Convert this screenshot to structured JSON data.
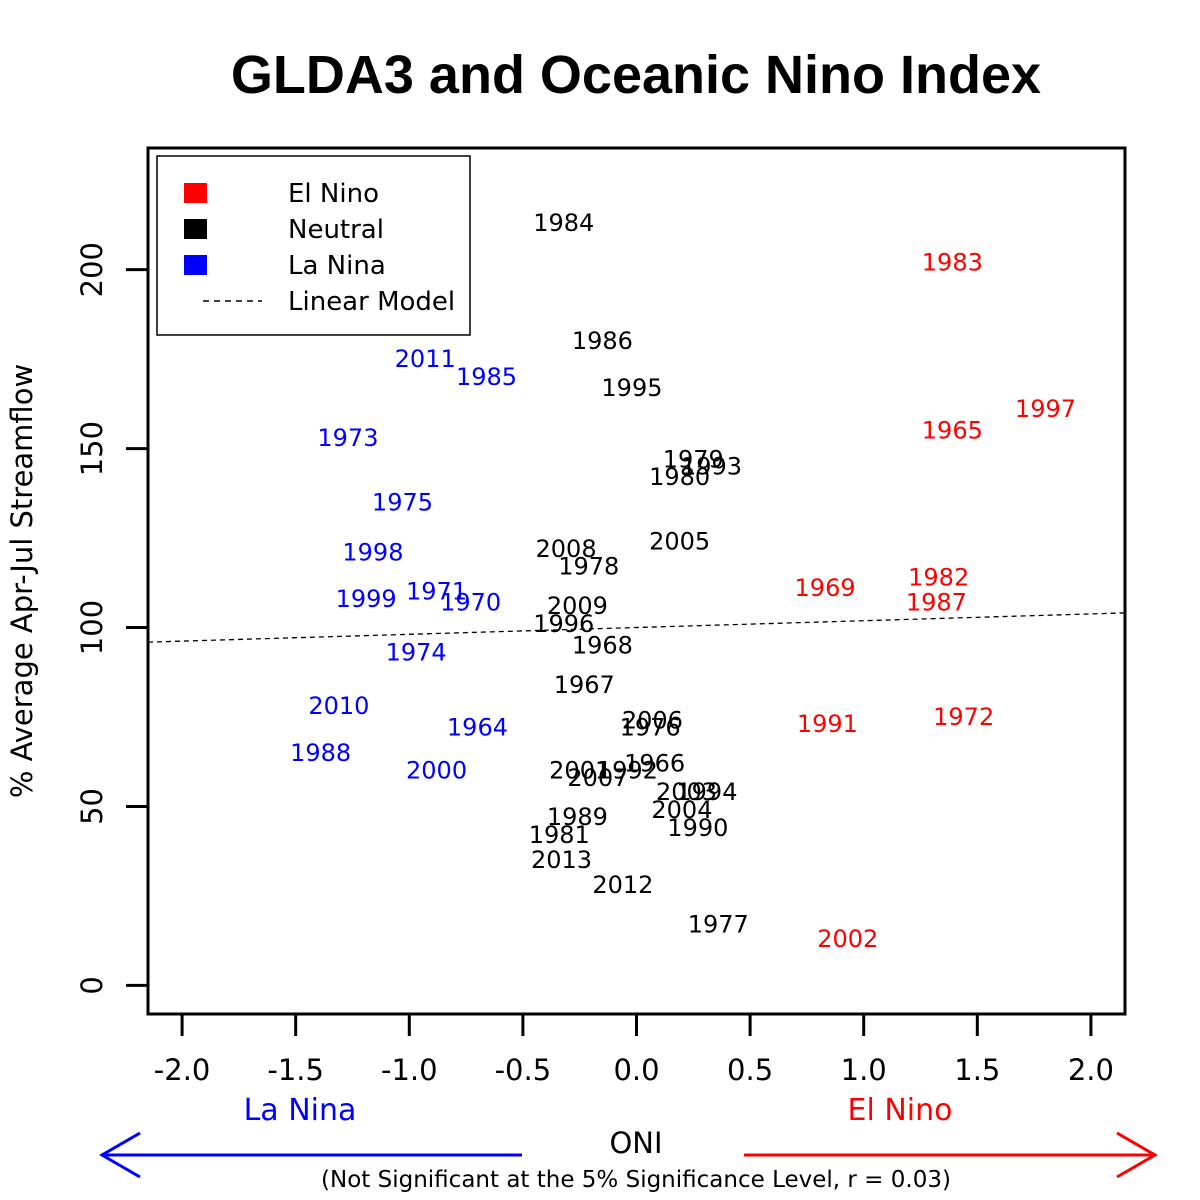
{
  "chart_data": {
    "type": "scatter",
    "title": "GLDA3 and Oceanic Nino Index",
    "xlabel": "ONI",
    "ylabel": "% Average Apr-Jul Streamflow",
    "note": "(Not Significant at the 5% Significance Level, r = 0.03)",
    "left_label": "La Nina",
    "right_label": "El Nino",
    "xlim": [
      -2.15,
      2.15
    ],
    "ylim": [
      -8,
      234
    ],
    "xticks": [
      -2.0,
      -1.5,
      -1.0,
      -0.5,
      0.0,
      0.5,
      1.0,
      1.5,
      2.0
    ],
    "xtick_labels": [
      "-2.0",
      "-1.5",
      "-1.0",
      "-0.5",
      "0.0",
      "0.5",
      "1.0",
      "1.5",
      "2.0"
    ],
    "yticks": [
      0,
      50,
      100,
      150,
      200
    ],
    "ytick_labels": [
      "0",
      "50",
      "100",
      "150",
      "200"
    ],
    "grid": false,
    "legend_position": "top-left",
    "legend": [
      {
        "label": "El Nino",
        "kind": "swatch",
        "color": "#ff0000"
      },
      {
        "label": "Neutral",
        "kind": "swatch",
        "color": "#000000"
      },
      {
        "label": "La Nina",
        "kind": "swatch",
        "color": "#0000ff"
      },
      {
        "label": "Linear Model",
        "kind": "dashed",
        "color": "#000000"
      }
    ],
    "colors": {
      "El Nino": "#ff0000",
      "Neutral": "#000000",
      "La Nina": "#0000ff"
    },
    "linear_model": {
      "intercept": 100.0,
      "slope": 1.9
    },
    "series": [
      {
        "name": "El Nino",
        "color": "#ff0000",
        "points": [
          {
            "label": "1983",
            "x": 1.39,
            "y": 202
          },
          {
            "label": "1997",
            "x": 1.8,
            "y": 161
          },
          {
            "label": "1965",
            "x": 1.39,
            "y": 155
          },
          {
            "label": "1969",
            "x": 0.83,
            "y": 111
          },
          {
            "label": "1982",
            "x": 1.33,
            "y": 114
          },
          {
            "label": "1987",
            "x": 1.32,
            "y": 107
          },
          {
            "label": "1991",
            "x": 0.84,
            "y": 73
          },
          {
            "label": "1972",
            "x": 1.44,
            "y": 75
          },
          {
            "label": "2002",
            "x": 0.93,
            "y": 13
          }
        ]
      },
      {
        "name": "Neutral",
        "color": "#000000",
        "points": [
          {
            "label": "1984",
            "x": -0.32,
            "y": 213
          },
          {
            "label": "1986",
            "x": -0.15,
            "y": 180
          },
          {
            "label": "1995",
            "x": -0.02,
            "y": 167
          },
          {
            "label": "1979",
            "x": 0.25,
            "y": 147
          },
          {
            "label": "1993",
            "x": 0.33,
            "y": 145
          },
          {
            "label": "1980",
            "x": 0.19,
            "y": 142
          },
          {
            "label": "2005",
            "x": 0.19,
            "y": 124
          },
          {
            "label": "2008",
            "x": -0.31,
            "y": 122
          },
          {
            "label": "1978",
            "x": -0.21,
            "y": 117
          },
          {
            "label": "2009",
            "x": -0.26,
            "y": 106
          },
          {
            "label": "1996",
            "x": -0.32,
            "y": 101
          },
          {
            "label": "1968",
            "x": -0.15,
            "y": 95
          },
          {
            "label": "1967",
            "x": -0.23,
            "y": 84
          },
          {
            "label": "2006",
            "x": 0.07,
            "y": 74
          },
          {
            "label": "1976",
            "x": 0.06,
            "y": 72
          },
          {
            "label": "1966",
            "x": 0.08,
            "y": 62
          },
          {
            "label": "2001",
            "x": -0.25,
            "y": 60
          },
          {
            "label": "1992",
            "x": -0.04,
            "y": 60
          },
          {
            "label": "2007",
            "x": -0.17,
            "y": 58
          },
          {
            "label": "2003",
            "x": 0.22,
            "y": 54
          },
          {
            "label": "1994",
            "x": 0.31,
            "y": 54
          },
          {
            "label": "2004",
            "x": 0.2,
            "y": 49
          },
          {
            "label": "1989",
            "x": -0.26,
            "y": 47
          },
          {
            "label": "1990",
            "x": 0.27,
            "y": 44
          },
          {
            "label": "1981",
            "x": -0.34,
            "y": 42
          },
          {
            "label": "2013",
            "x": -0.33,
            "y": 35
          },
          {
            "label": "2012",
            "x": -0.06,
            "y": 28
          },
          {
            "label": "1977",
            "x": 0.36,
            "y": 17
          }
        ]
      },
      {
        "name": "La Nina",
        "color": "#0000ff",
        "points": [
          {
            "label": "2011",
            "x": -0.93,
            "y": 175
          },
          {
            "label": "1985",
            "x": -0.66,
            "y": 170
          },
          {
            "label": "1973",
            "x": -1.27,
            "y": 153
          },
          {
            "label": "1975",
            "x": -1.03,
            "y": 135
          },
          {
            "label": "1998",
            "x": -1.16,
            "y": 121
          },
          {
            "label": "1999",
            "x": -1.19,
            "y": 108
          },
          {
            "label": "1971",
            "x": -0.88,
            "y": 110
          },
          {
            "label": "1970",
            "x": -0.73,
            "y": 107
          },
          {
            "label": "1974",
            "x": -0.97,
            "y": 93
          },
          {
            "label": "2010",
            "x": -1.31,
            "y": 78
          },
          {
            "label": "1964",
            "x": -0.7,
            "y": 72
          },
          {
            "label": "1988",
            "x": -1.39,
            "y": 65
          },
          {
            "label": "2000",
            "x": -0.88,
            "y": 60
          }
        ]
      }
    ]
  }
}
